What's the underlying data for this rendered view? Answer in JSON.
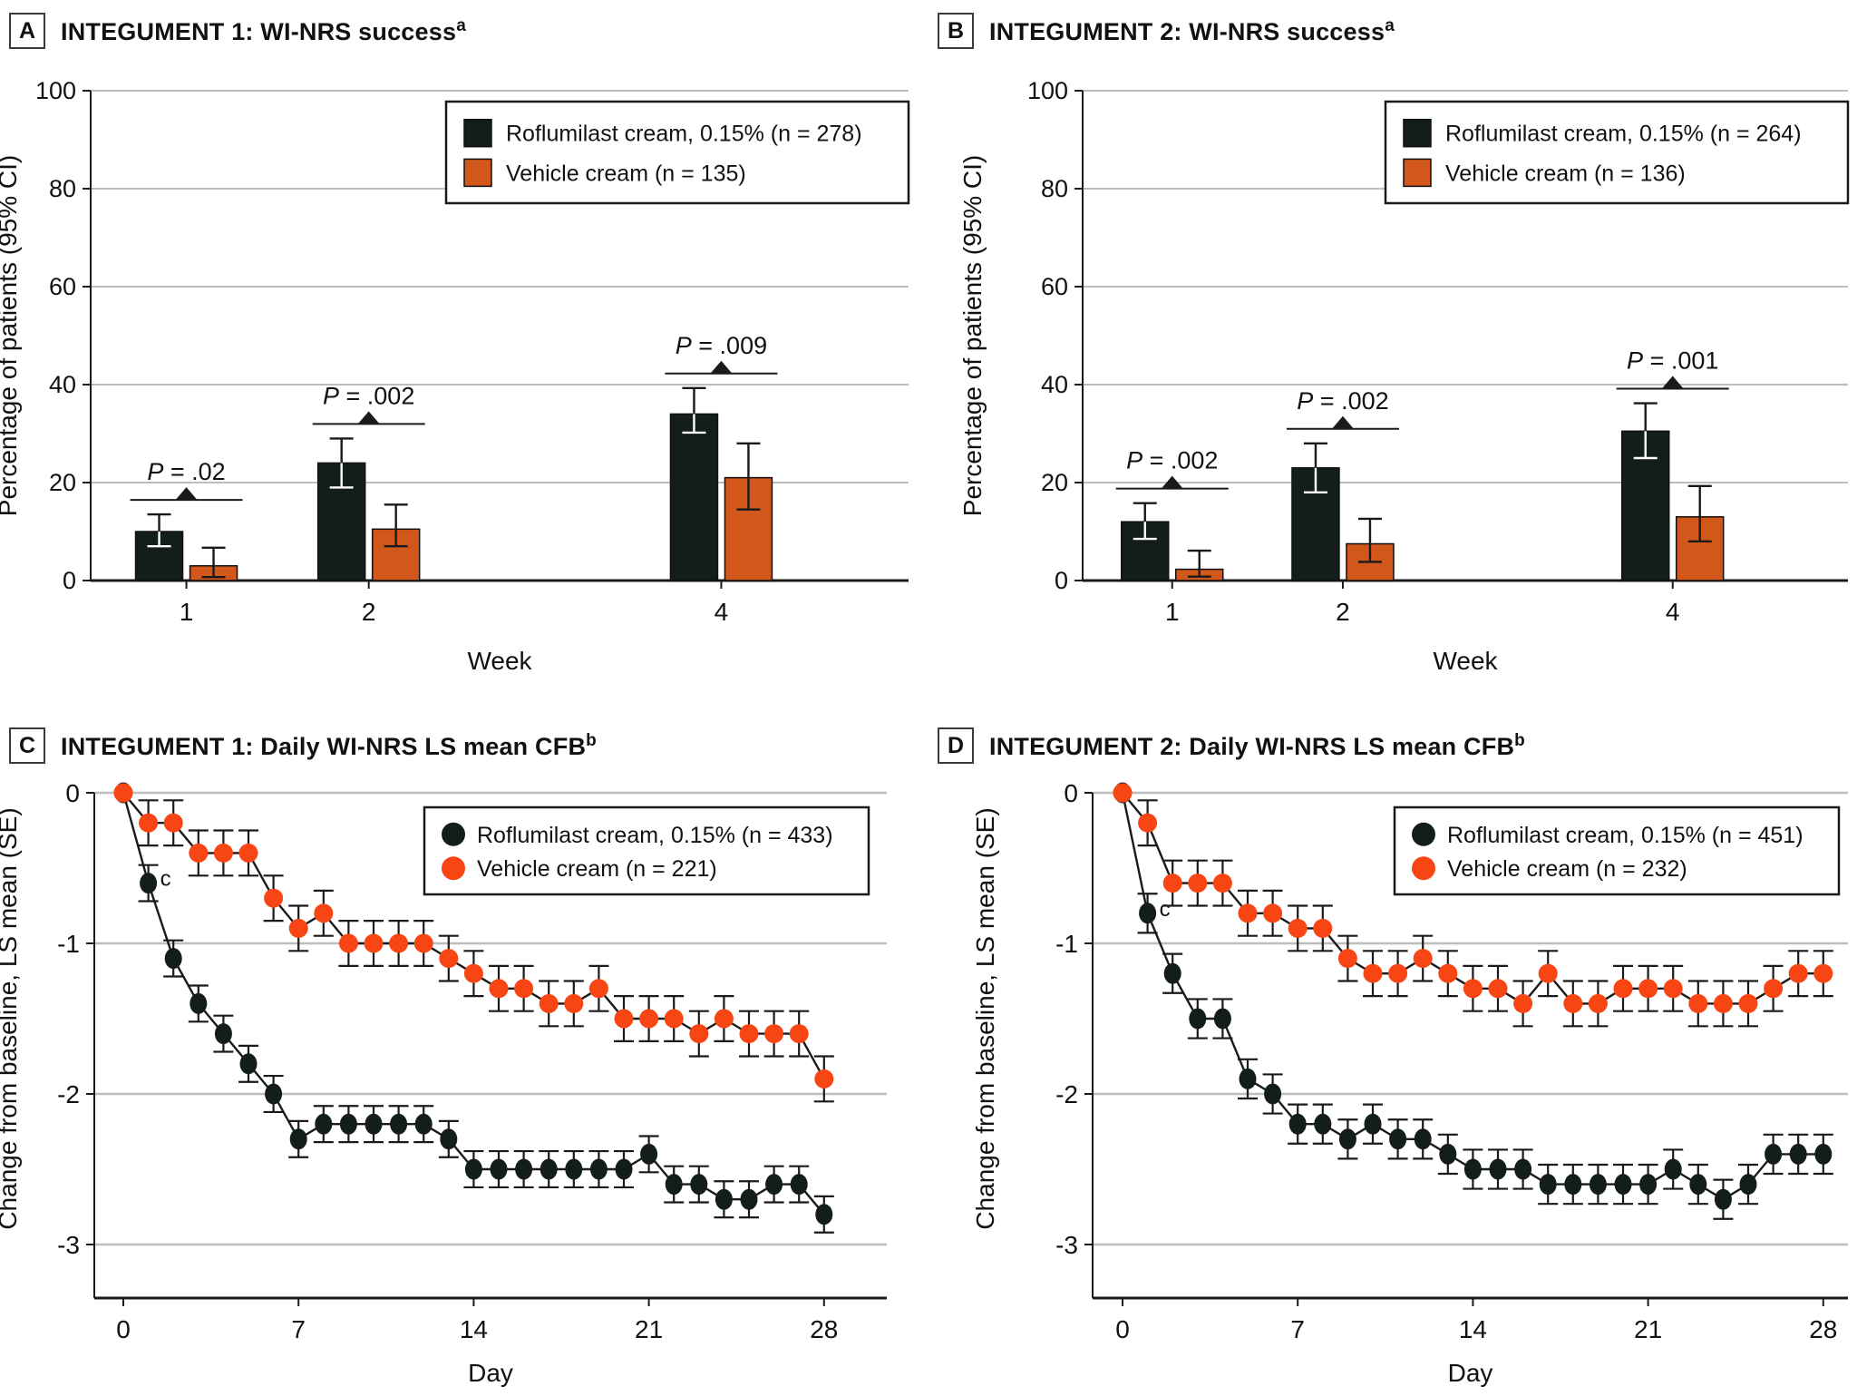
{
  "style": {
    "axis_color": "#1a1a1a",
    "grid_color": "#bdbdbd",
    "roflumilast_color": "#121d1c",
    "vehicle_bar_color": "#d2571a",
    "vehicle_dot_color": "#f74514",
    "background": "#ffffff"
  },
  "chart_data": [
    {
      "type": "bar",
      "tag": "A",
      "title": "INTEGUMENT 1: WI-NRS success",
      "title_sup": "a",
      "ylabel": "Percentage of patients (95% CI)",
      "xlabel": "Week",
      "ylim": [
        0,
        100
      ],
      "yticks": [
        0,
        20,
        40,
        60,
        80,
        100
      ],
      "categories": [
        "1",
        "2",
        "4"
      ],
      "p_prefix": "P",
      "p_equals": " = ",
      "p_values": [
        ".02",
        ".002",
        ".009"
      ],
      "legend_position": "top-right",
      "series": [
        {
          "name": "Roflumilast cream, 0.15% (n = 278)",
          "color": "#121d1c",
          "values": [
            10,
            24,
            34
          ],
          "ci": [
            [
              7,
              13.5
            ],
            [
              19,
              29
            ],
            [
              30.2,
              39.3
            ]
          ]
        },
        {
          "name": "Vehicle cream (n = 135)",
          "color": "#d2571a",
          "values": [
            3,
            10.5,
            21
          ],
          "ci": [
            [
              0.7,
              6.7
            ],
            [
              7,
              15.5
            ],
            [
              14.5,
              28
            ]
          ]
        }
      ]
    },
    {
      "type": "bar",
      "tag": "B",
      "title": "INTEGUMENT 2: WI-NRS success",
      "title_sup": "a",
      "ylabel": "Percentage of patients (95% CI)",
      "xlabel": "Week",
      "ylim": [
        0,
        100
      ],
      "yticks": [
        0,
        20,
        40,
        60,
        80,
        100
      ],
      "categories": [
        "1",
        "2",
        "4"
      ],
      "p_prefix": "P",
      "p_equals": " = ",
      "p_values": [
        ".002",
        ".002",
        ".001"
      ],
      "legend_position": "top-right",
      "series": [
        {
          "name": "Roflumilast cream, 0.15% (n = 264)",
          "color": "#121d1c",
          "values": [
            12,
            23,
            30.5
          ],
          "ci": [
            [
              8.5,
              15.8
            ],
            [
              18,
              28
            ],
            [
              25,
              36.2
            ]
          ]
        },
        {
          "name": "Vehicle cream (n = 136)",
          "color": "#d2571a",
          "values": [
            2.3,
            7.5,
            13
          ],
          "ci": [
            [
              0.8,
              6.1
            ],
            [
              3.8,
              12.6
            ],
            [
              8,
              19.3
            ]
          ]
        }
      ]
    },
    {
      "type": "line",
      "tag": "C",
      "title": "INTEGUMENT 1: Daily WI-NRS LS mean CFB",
      "title_sup": "b",
      "ylabel": "Change from baseline, LS mean (SE)",
      "xlabel": "Day",
      "ylim": [
        -3.5,
        0.2
      ],
      "yticks": [
        0,
        -1,
        -2,
        -3
      ],
      "xticks": [
        0,
        7,
        14,
        21,
        28
      ],
      "x": [
        0,
        1,
        2,
        3,
        4,
        5,
        6,
        7,
        8,
        9,
        10,
        11,
        12,
        13,
        14,
        15,
        16,
        17,
        18,
        19,
        20,
        21,
        22,
        23,
        24,
        25,
        26,
        27,
        28
      ],
      "legend_position": "top-right",
      "series": [
        {
          "name": "Roflumilast cream, 0.15% (n = 433)",
          "color": "#121d1c",
          "marker": "ellipse",
          "se": 0.12,
          "note": {
            "day": 1,
            "label": "c"
          },
          "values": [
            0,
            -0.6,
            -1.1,
            -1.4,
            -1.6,
            -1.8,
            -2.0,
            -2.3,
            -2.2,
            -2.2,
            -2.2,
            -2.2,
            -2.2,
            -2.3,
            -2.5,
            -2.5,
            -2.5,
            -2.5,
            -2.5,
            -2.5,
            -2.5,
            -2.4,
            -2.6,
            -2.6,
            -2.7,
            -2.7,
            -2.6,
            -2.6,
            -2.8
          ]
        },
        {
          "name": "Vehicle cream (n = 221)",
          "color": "#f74514",
          "marker": "circle",
          "se": 0.15,
          "values": [
            0,
            -0.2,
            -0.2,
            -0.4,
            -0.4,
            -0.4,
            -0.7,
            -0.9,
            -0.8,
            -1.0,
            -1.0,
            -1.0,
            -1.0,
            -1.1,
            -1.2,
            -1.3,
            -1.3,
            -1.4,
            -1.4,
            -1.3,
            -1.5,
            -1.5,
            -1.5,
            -1.6,
            -1.5,
            -1.6,
            -1.6,
            -1.6,
            -1.9
          ]
        }
      ]
    },
    {
      "type": "line",
      "tag": "D",
      "title": "INTEGUMENT 2: Daily WI-NRS LS mean CFB",
      "title_sup": "b",
      "ylabel": "Change from baseline, LS mean (SE)",
      "xlabel": "Day",
      "ylim": [
        -3.5,
        0.2
      ],
      "yticks": [
        0,
        -1,
        -2,
        -3
      ],
      "xticks": [
        0,
        7,
        14,
        21,
        28
      ],
      "x": [
        0,
        1,
        2,
        3,
        4,
        5,
        6,
        7,
        8,
        9,
        10,
        11,
        12,
        13,
        14,
        15,
        16,
        17,
        18,
        19,
        20,
        21,
        22,
        23,
        24,
        25,
        26,
        27,
        28
      ],
      "legend_position": "top-right",
      "series": [
        {
          "name": "Roflumilast cream, 0.15% (n = 451)",
          "color": "#121d1c",
          "marker": "ellipse",
          "se": 0.13,
          "note": {
            "day": 1,
            "label": "c"
          },
          "values": [
            0,
            -0.8,
            -1.2,
            -1.5,
            -1.5,
            -1.9,
            -2.0,
            -2.2,
            -2.2,
            -2.3,
            -2.2,
            -2.3,
            -2.3,
            -2.4,
            -2.5,
            -2.5,
            -2.5,
            -2.6,
            -2.6,
            -2.6,
            -2.6,
            -2.6,
            -2.5,
            -2.6,
            -2.7,
            -2.6,
            -2.4,
            -2.4,
            -2.4
          ]
        },
        {
          "name": "Vehicle cream (n = 232)",
          "color": "#f74514",
          "marker": "circle",
          "se": 0.15,
          "values": [
            0,
            -0.2,
            -0.6,
            -0.6,
            -0.6,
            -0.8,
            -0.8,
            -0.9,
            -0.9,
            -1.1,
            -1.2,
            -1.2,
            -1.1,
            -1.2,
            -1.3,
            -1.3,
            -1.4,
            -1.2,
            -1.4,
            -1.4,
            -1.3,
            -1.3,
            -1.3,
            -1.4,
            -1.4,
            -1.4,
            -1.3,
            -1.2,
            -1.2
          ]
        }
      ]
    }
  ]
}
